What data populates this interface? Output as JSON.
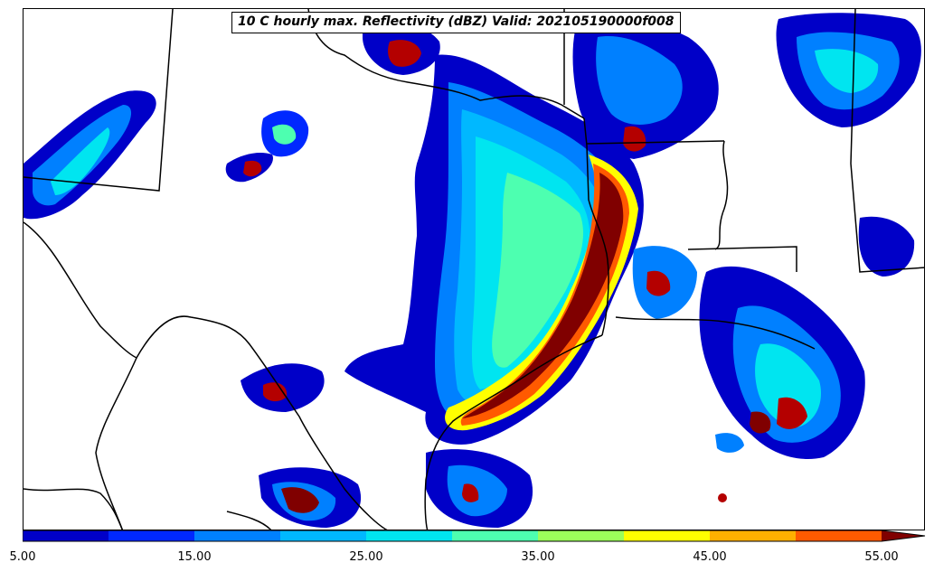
{
  "title": "10 C hourly max. Reflectivity (dBZ) Valid: 202105190000f008",
  "colorbar": {
    "tick_labels": [
      "5.00",
      "15.00",
      "25.00",
      "35.00",
      "45.00",
      "55.00"
    ],
    "levels": [
      5,
      10,
      15,
      20,
      25,
      30,
      35,
      40,
      45,
      50,
      55
    ],
    "colors": [
      "#0000c8",
      "#0028ff",
      "#0080ff",
      "#00b8ff",
      "#00e5f0",
      "#4dffb0",
      "#9cff5a",
      "#ffff00",
      "#ffb000",
      "#ff5a00",
      "#b40000",
      "#800000"
    ],
    "extend": "max"
  }
}
